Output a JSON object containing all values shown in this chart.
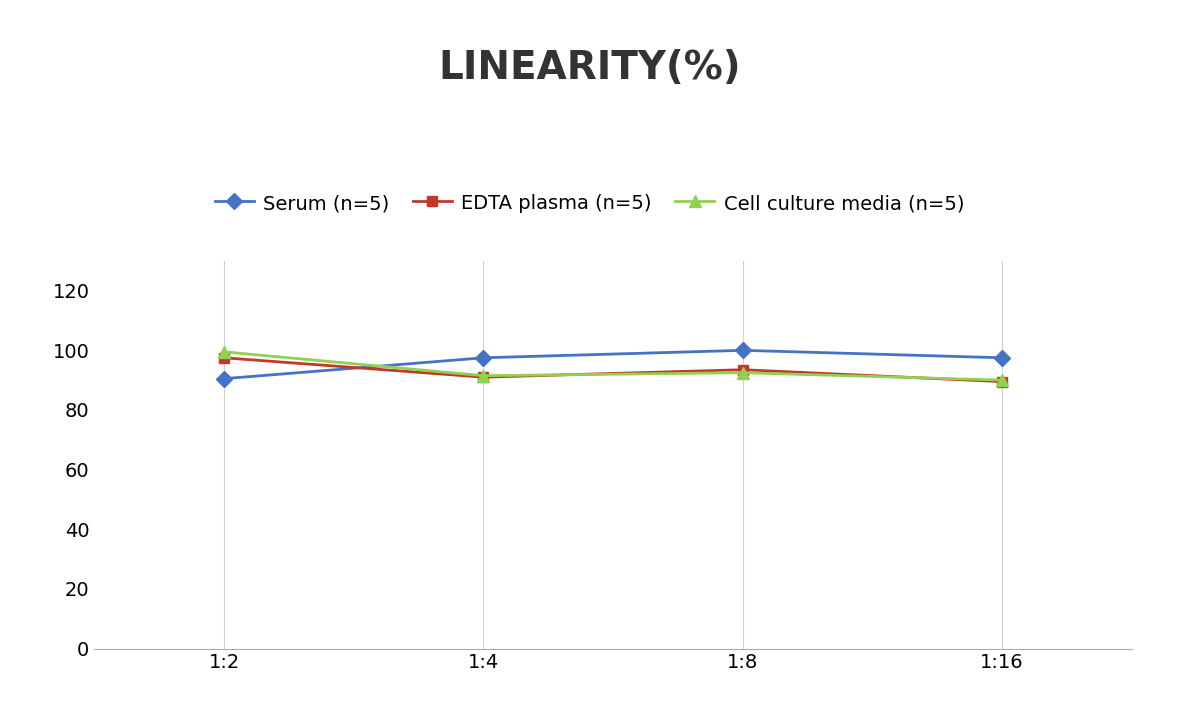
{
  "title": "LINEARITY(%)",
  "x_labels": [
    "1:2",
    "1:4",
    "1:8",
    "1:16"
  ],
  "x_values": [
    0,
    1,
    2,
    3
  ],
  "series": [
    {
      "name": "Serum (n=5)",
      "values": [
        90.5,
        97.5,
        100.0,
        97.5
      ],
      "color": "#4472C4",
      "marker": "D",
      "markersize": 8
    },
    {
      "name": "EDTA plasma (n=5)",
      "values": [
        97.5,
        91.0,
        93.5,
        89.5
      ],
      "color": "#C0392B",
      "marker": "s",
      "markersize": 7
    },
    {
      "name": "Cell culture media (n=5)",
      "values": [
        99.5,
        91.5,
        92.5,
        90.0
      ],
      "color": "#92D050",
      "marker": "^",
      "markersize": 8
    }
  ],
  "ylim": [
    0,
    130
  ],
  "yticks": [
    0,
    20,
    40,
    60,
    80,
    100,
    120
  ],
  "title_fontsize": 28,
  "legend_fontsize": 14,
  "tick_fontsize": 14,
  "background_color": "#ffffff",
  "grid_color": "#d0d0d0",
  "linewidth": 2.0
}
